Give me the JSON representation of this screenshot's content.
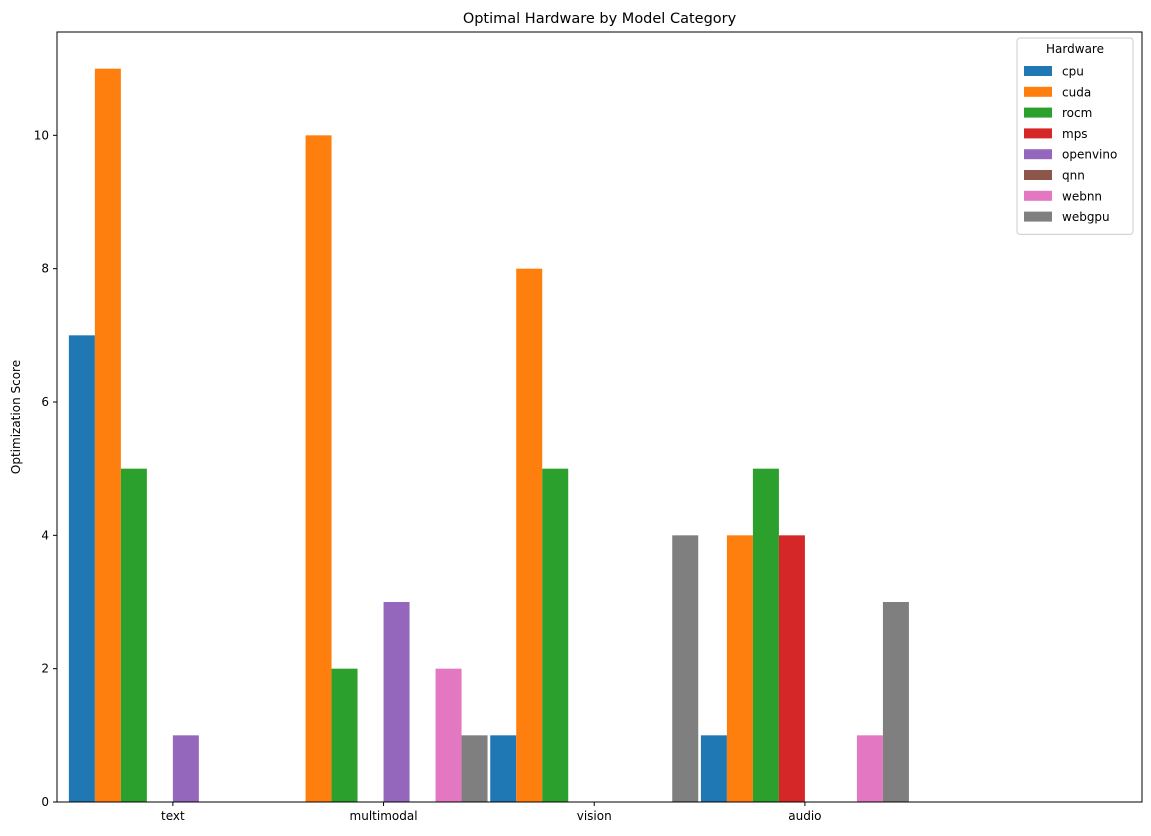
{
  "chart_data": {
    "type": "bar",
    "title": "Optimal Hardware by Model Category",
    "xlabel": "",
    "ylabel": "Optimization Score",
    "categories": [
      "text",
      "multimodal",
      "vision",
      "audio"
    ],
    "ylim": [
      0,
      11.55
    ],
    "yticks": [
      0,
      2,
      4,
      6,
      8,
      10
    ],
    "grid": false,
    "legend": {
      "title": "Hardware",
      "position": "top-right"
    },
    "series": [
      {
        "name": "cpu",
        "color": "#1f77b4",
        "values": [
          7,
          0,
          1,
          1
        ]
      },
      {
        "name": "cuda",
        "color": "#ff7f0e",
        "values": [
          11,
          10,
          8,
          4
        ]
      },
      {
        "name": "rocm",
        "color": "#2ca02c",
        "values": [
          5,
          2,
          5,
          5
        ]
      },
      {
        "name": "mps",
        "color": "#d62728",
        "values": [
          0,
          0,
          0,
          4
        ]
      },
      {
        "name": "openvino",
        "color": "#9467bd",
        "values": [
          1,
          3,
          0,
          0
        ]
      },
      {
        "name": "qnn",
        "color": "#8c564b",
        "values": [
          0,
          0,
          0,
          0
        ]
      },
      {
        "name": "webnn",
        "color": "#e377c2",
        "values": [
          0,
          2,
          0,
          1
        ]
      },
      {
        "name": "webgpu",
        "color": "#7f7f7f",
        "values": [
          0,
          1,
          4,
          3
        ]
      }
    ]
  }
}
